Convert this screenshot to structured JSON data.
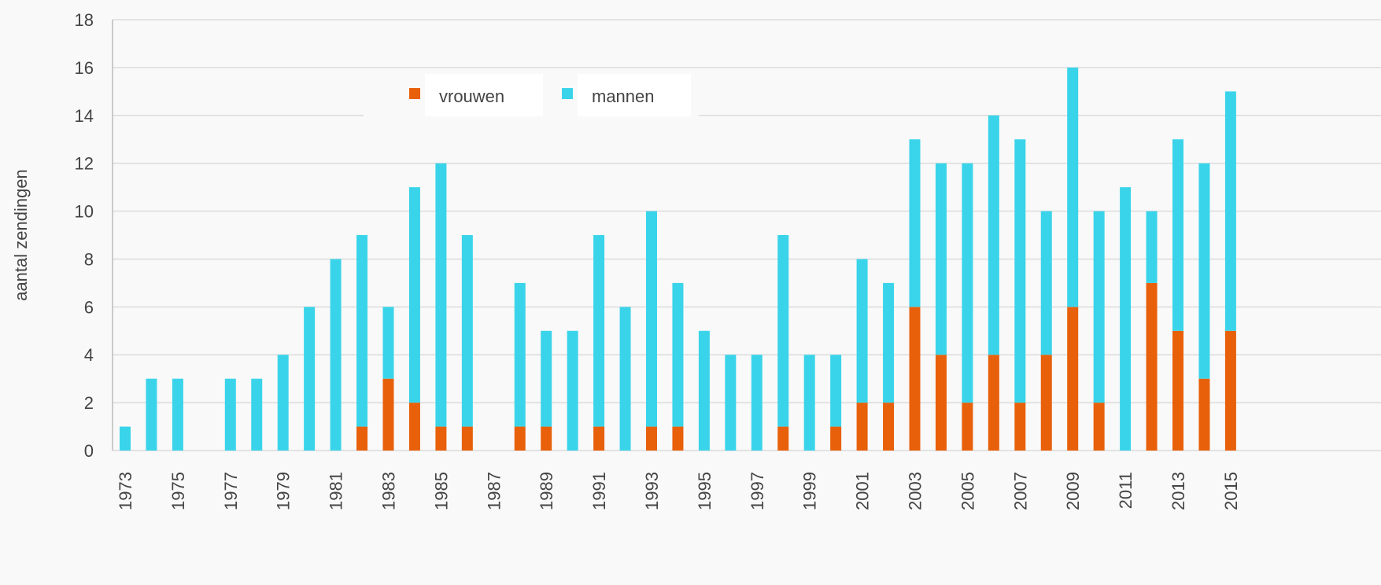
{
  "chart_data": {
    "type": "stacked_bar",
    "ylabel": "aantal zendingen",
    "categories": [
      "1973",
      null,
      "1975",
      null,
      "1977",
      null,
      "1979",
      null,
      "1981",
      null,
      "1983",
      null,
      "1985",
      null,
      "1987",
      null,
      "1989",
      null,
      "1991",
      null,
      "1993",
      null,
      "1995",
      null,
      "1997",
      null,
      "1999",
      null,
      "2001",
      null,
      "2003",
      null,
      "2005",
      null,
      "2007",
      null,
      "2009",
      null,
      "2011",
      null,
      "2013",
      null,
      "2015"
    ],
    "series": [
      {
        "name": "vrouwen",
        "color": "#e8600a",
        "values": [
          0,
          0,
          0,
          0,
          0,
          0,
          0,
          0,
          0,
          1,
          3,
          2,
          1,
          1,
          0,
          1,
          1,
          0,
          1,
          0,
          1,
          1,
          0,
          0,
          0,
          1,
          0,
          1,
          2,
          2,
          6,
          4,
          2,
          4,
          2,
          4,
          6,
          2,
          0,
          7,
          5,
          3,
          5
        ]
      },
      {
        "name": "mannen",
        "color": "#3ad4ea",
        "values": [
          1,
          3,
          3,
          0,
          3,
          3,
          4,
          6,
          8,
          8,
          3,
          9,
          11,
          8,
          0,
          6,
          4,
          5,
          8,
          6,
          9,
          6,
          5,
          4,
          4,
          8,
          4,
          3,
          6,
          5,
          7,
          8,
          10,
          10,
          11,
          6,
          10,
          8,
          11,
          3,
          8,
          9,
          10
        ]
      }
    ],
    "ylim": [
      0,
      18
    ],
    "yticks": [
      0,
      2,
      4,
      6,
      8,
      10,
      12,
      14,
      16,
      18
    ],
    "grid": true,
    "legend": "top"
  }
}
